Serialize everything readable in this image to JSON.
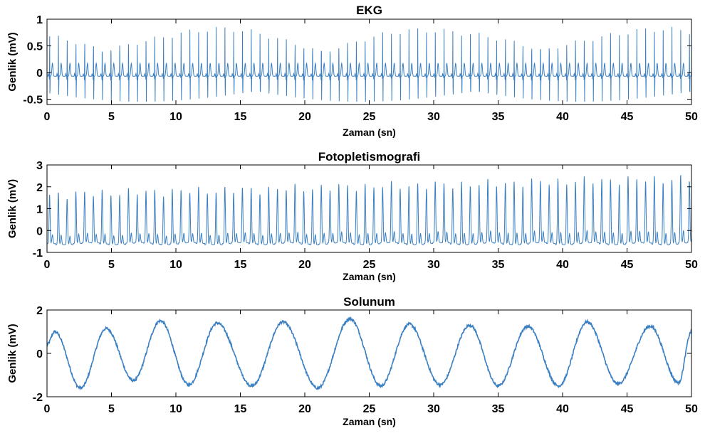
{
  "figure": {
    "line_color": "#3a7fc1",
    "axis_color": "#000000",
    "background": "#ffffff",
    "grid": false,
    "legend": "none"
  },
  "chart_data": [
    {
      "type": "line",
      "title": "EKG",
      "xlabel": "Zaman (sn)",
      "ylabel": "Genlik (mV)",
      "xlim": [
        0,
        50
      ],
      "ylim": [
        -0.6,
        1
      ],
      "xticks": [
        0,
        5,
        10,
        15,
        20,
        25,
        30,
        35,
        40,
        45,
        50
      ],
      "yticks": [
        -0.5,
        0,
        0.5,
        1
      ],
      "ytick_labels": [
        "-0.5",
        "0",
        "0.5",
        "1"
      ],
      "signal": {
        "kind": "ecg",
        "beat_period_s": 0.68,
        "r_peak_mV": 0.8,
        "s_trough_mV": -0.55,
        "t_wave_mV": 0.2,
        "baseline_mV": -0.07
      }
    },
    {
      "type": "line",
      "title": "Fotopletismografi",
      "xlabel": "Zaman (sn)",
      "ylabel": "Genlik (mV)",
      "xlim": [
        0,
        50
      ],
      "ylim": [
        -1,
        3
      ],
      "xticks": [
        0,
        5,
        10,
        15,
        20,
        25,
        30,
        35,
        40,
        45,
        50
      ],
      "yticks": [
        -1,
        0,
        1,
        2,
        3
      ],
      "ytick_labels": [
        "-1",
        "0",
        "1",
        "2",
        "3"
      ],
      "signal": {
        "kind": "ppg",
        "beat_period_s": 0.68,
        "peak_start_mV": 1.65,
        "peak_end_mV": 2.4,
        "trough_mV": -0.6
      }
    },
    {
      "type": "line",
      "title": "Solunum",
      "xlabel": "Zaman (sn)",
      "ylabel": "Genlik (mV)",
      "xlim": [
        0,
        50
      ],
      "ylim": [
        -2,
        2
      ],
      "xticks": [
        0,
        5,
        10,
        15,
        20,
        25,
        30,
        35,
        40,
        45,
        50
      ],
      "yticks": [
        -2,
        0,
        2
      ],
      "ytick_labels": [
        "-2",
        "0",
        "2"
      ],
      "signal": {
        "kind": "respiration",
        "x": [
          0,
          0.6,
          2.6,
          4.6,
          6.7,
          8.8,
          11.0,
          13.2,
          15.9,
          18.3,
          21.0,
          23.5,
          25.9,
          28.1,
          30.5,
          32.8,
          35.0,
          37.3,
          39.7,
          41.9,
          44.3,
          46.8,
          49.0,
          50
        ],
        "y": [
          0.4,
          1.0,
          -1.6,
          1.15,
          -1.25,
          1.5,
          -1.45,
          1.4,
          -1.5,
          1.45,
          -1.6,
          1.6,
          -1.5,
          1.35,
          -1.45,
          1.3,
          -1.5,
          1.25,
          -1.5,
          1.45,
          -1.4,
          1.25,
          -1.35,
          1.0
        ]
      }
    }
  ]
}
